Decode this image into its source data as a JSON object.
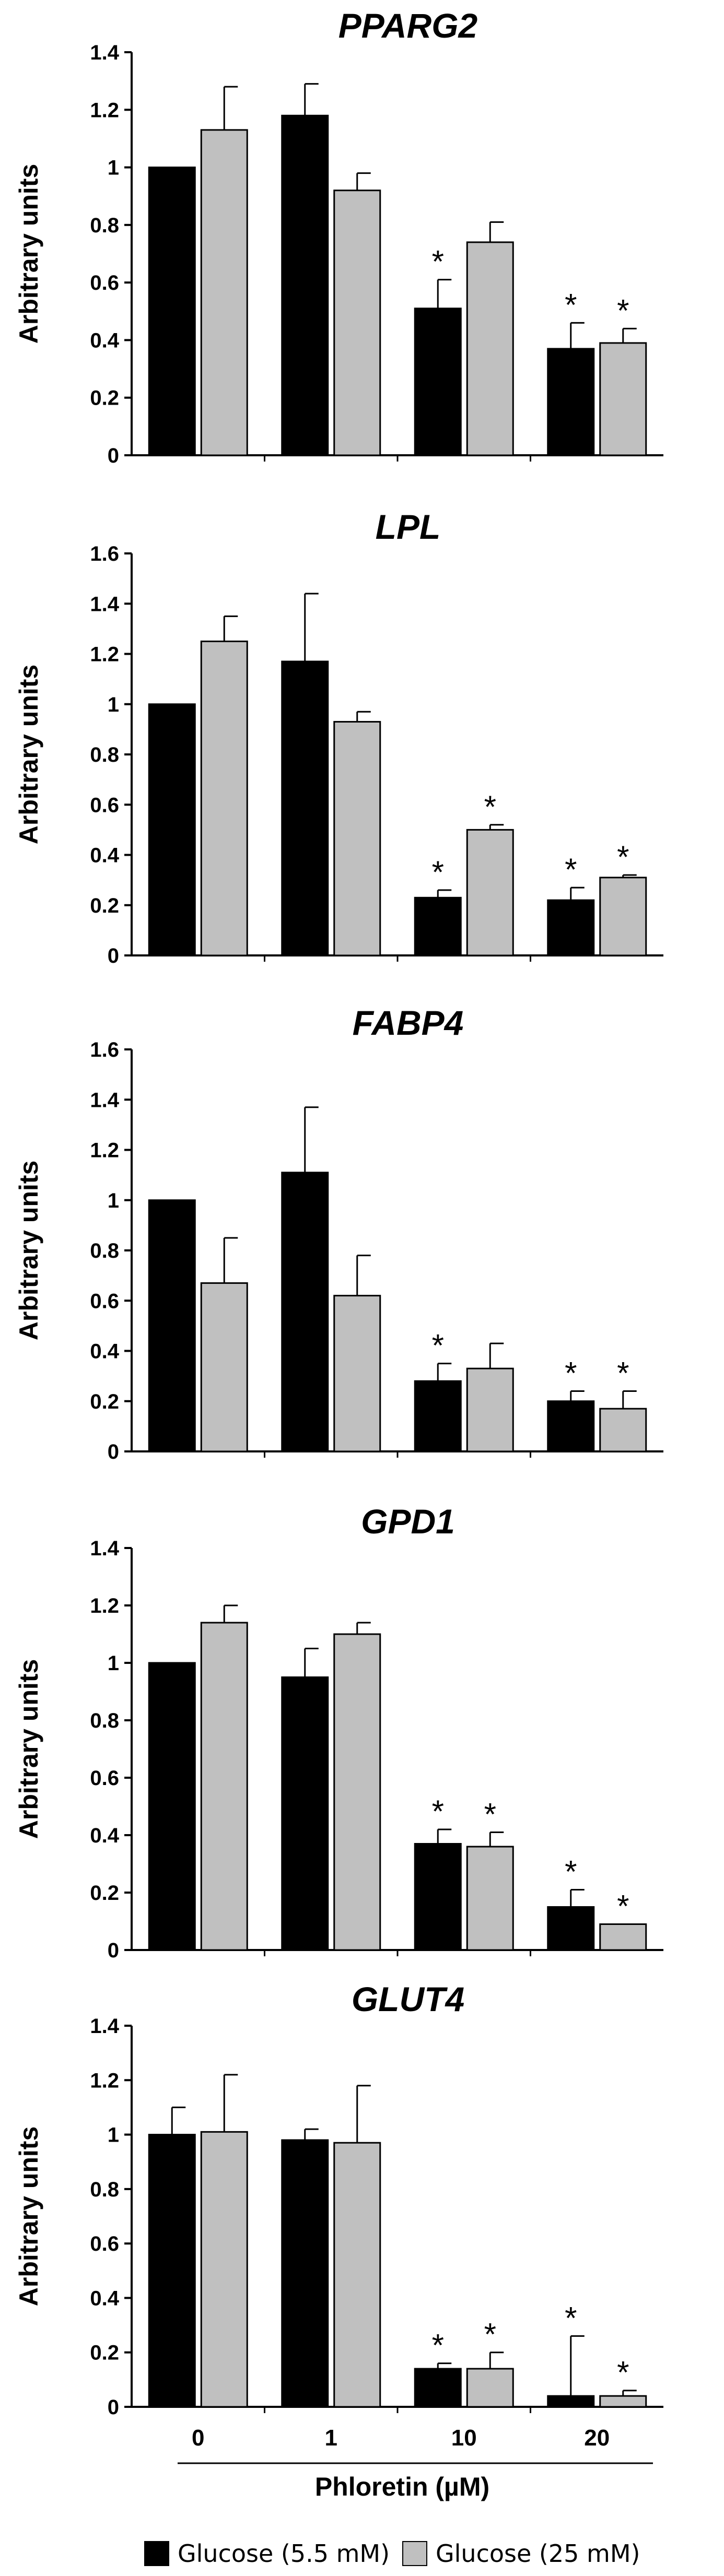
{
  "colors": {
    "series1": "#000000",
    "series2": "#c0c0c0",
    "axis": "#000000"
  },
  "x_axis": {
    "label": "Phloretin (µM)"
  },
  "legend": {
    "items": [
      {
        "label": "Glucose (5.5 mM)",
        "color": "#000000"
      },
      {
        "label": "Glucose (25 mM)",
        "color": "#c0c0c0"
      }
    ]
  },
  "chart_data": [
    {
      "type": "bar",
      "title": "PPARG2",
      "ylabel": "Arbitrary units",
      "categories": [
        "0",
        "1",
        "10",
        "20"
      ],
      "ylim": [
        0,
        1.4
      ],
      "yticks": [
        "0",
        "0.2",
        "0.4",
        "0.6",
        "0.8",
        "1",
        "1.2",
        "1.4"
      ],
      "series": [
        {
          "name": "Glucose (5.5 mM)",
          "values": [
            1.0,
            1.18,
            0.51,
            0.37
          ],
          "errors": [
            0,
            0.11,
            0.1,
            0.09
          ],
          "significant": [
            false,
            false,
            true,
            true
          ]
        },
        {
          "name": "Glucose (25 mM)",
          "values": [
            1.13,
            0.92,
            0.74,
            0.39
          ],
          "errors": [
            0.15,
            0.06,
            0.07,
            0.05
          ],
          "significant": [
            false,
            false,
            false,
            true
          ]
        }
      ]
    },
    {
      "type": "bar",
      "title": "LPL",
      "ylabel": "Arbitrary units",
      "categories": [
        "0",
        "1",
        "10",
        "20"
      ],
      "ylim": [
        0,
        1.6
      ],
      "yticks": [
        "0",
        "0.2",
        "0.4",
        "0.6",
        "0.8",
        "1",
        "1.2",
        "1.4",
        "1.6"
      ],
      "series": [
        {
          "name": "Glucose (5.5 mM)",
          "values": [
            1.0,
            1.17,
            0.23,
            0.22
          ],
          "errors": [
            0,
            0.27,
            0.03,
            0.05
          ],
          "significant": [
            false,
            false,
            true,
            true
          ]
        },
        {
          "name": "Glucose (25 mM)",
          "values": [
            1.25,
            0.93,
            0.5,
            0.31
          ],
          "errors": [
            0.1,
            0.04,
            0.02,
            0.01
          ],
          "significant": [
            false,
            false,
            true,
            true
          ]
        }
      ]
    },
    {
      "type": "bar",
      "title": "FABP4",
      "ylabel": "Arbitrary units",
      "categories": [
        "0",
        "1",
        "10",
        "20"
      ],
      "ylim": [
        0,
        1.6
      ],
      "yticks": [
        "0",
        "0.2",
        "0.4",
        "0.6",
        "0.8",
        "1",
        "1.2",
        "1.4",
        "1.6"
      ],
      "series": [
        {
          "name": "Glucose (5.5 mM)",
          "values": [
            1.0,
            1.11,
            0.28,
            0.2
          ],
          "errors": [
            0,
            0.26,
            0.07,
            0.04
          ],
          "significant": [
            false,
            false,
            true,
            true
          ]
        },
        {
          "name": "Glucose (25 mM)",
          "values": [
            0.67,
            0.62,
            0.33,
            0.17
          ],
          "errors": [
            0.18,
            0.16,
            0.1,
            0.07
          ],
          "significant": [
            false,
            false,
            false,
            true
          ]
        }
      ]
    },
    {
      "type": "bar",
      "title": "GPD1",
      "ylabel": "Arbitrary units",
      "categories": [
        "0",
        "1",
        "10",
        "20"
      ],
      "ylim": [
        0,
        1.4
      ],
      "yticks": [
        "0",
        "0.2",
        "0.4",
        "0.6",
        "0.8",
        "1",
        "1.2",
        "1.4"
      ],
      "series": [
        {
          "name": "Glucose (5.5 mM)",
          "values": [
            1.0,
            0.95,
            0.37,
            0.15
          ],
          "errors": [
            0,
            0.1,
            0.05,
            0.06
          ],
          "significant": [
            false,
            false,
            true,
            true
          ]
        },
        {
          "name": "Glucose (25 mM)",
          "values": [
            1.14,
            1.1,
            0.36,
            0.09
          ],
          "errors": [
            0.06,
            0.04,
            0.05,
            0
          ],
          "significant": [
            false,
            false,
            true,
            true
          ]
        }
      ]
    },
    {
      "type": "bar",
      "title": "GLUT4",
      "ylabel": "Arbitrary units",
      "categories": [
        "0",
        "1",
        "10",
        "20"
      ],
      "ylim": [
        0,
        1.4
      ],
      "yticks": [
        "0",
        "0.2",
        "0.4",
        "0.6",
        "0.8",
        "1",
        "1.2",
        "1.4"
      ],
      "series": [
        {
          "name": "Glucose (5.5 mM)",
          "values": [
            1.0,
            0.98,
            0.14,
            0.04
          ],
          "errors": [
            0.1,
            0.04,
            0.02,
            0.22
          ],
          "significant": [
            false,
            false,
            true,
            true
          ]
        },
        {
          "name": "Glucose (25 mM)",
          "values": [
            1.01,
            0.97,
            0.14,
            0.04
          ],
          "errors": [
            0.21,
            0.21,
            0.06,
            0.02
          ],
          "significant": [
            false,
            false,
            true,
            true
          ]
        }
      ]
    }
  ]
}
